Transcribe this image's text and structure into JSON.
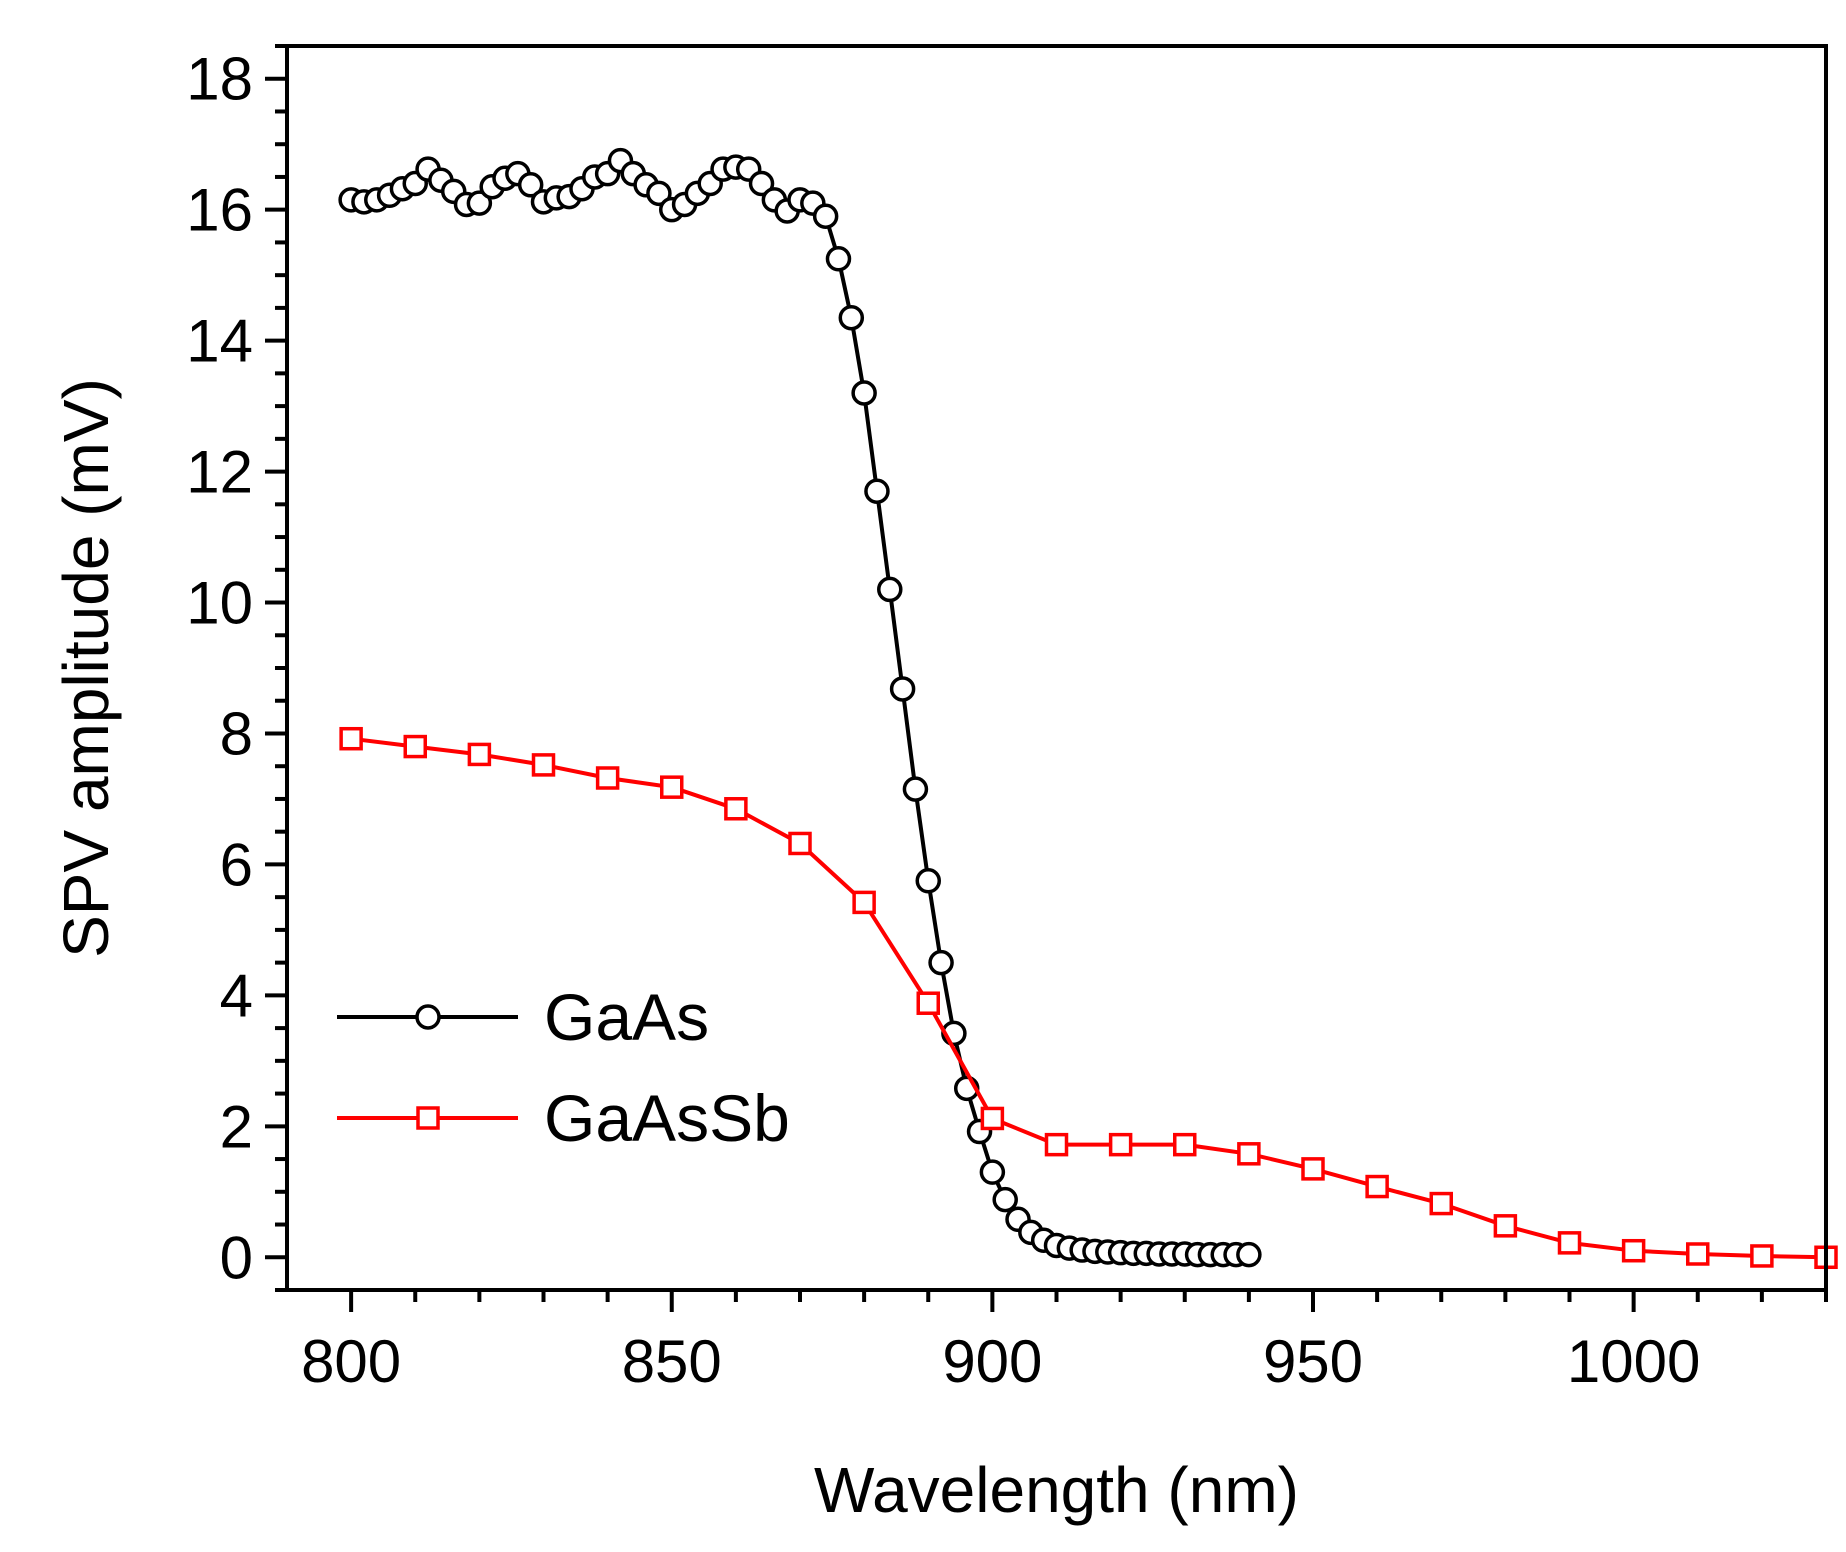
{
  "chart_data": {
    "type": "line",
    "title": "",
    "xlabel": "Wavelength (nm)",
    "ylabel": "SPV amplitude (mV)",
    "xlim": [
      790,
      1030
    ],
    "ylim": [
      -0.5,
      18.5
    ],
    "xticks": [
      800,
      850,
      900,
      950,
      1000
    ],
    "yticks": [
      0,
      2,
      4,
      6,
      8,
      10,
      12,
      14,
      16,
      18
    ],
    "x_tick_labels": [
      "800",
      "850",
      "900",
      "950",
      "1000"
    ],
    "y_tick_labels": [
      "0",
      "2",
      "4",
      "6",
      "8",
      "10",
      "12",
      "14",
      "16",
      "18"
    ],
    "grid": false,
    "legend_position": "lower-left",
    "series": [
      {
        "name": "GaAs",
        "color": "#000000",
        "marker": "circle",
        "x": [
          800,
          802,
          804,
          806,
          808,
          810,
          812,
          814,
          816,
          818,
          820,
          822,
          824,
          826,
          828,
          830,
          832,
          834,
          836,
          838,
          840,
          842,
          844,
          846,
          848,
          850,
          852,
          854,
          856,
          858,
          860,
          862,
          864,
          866,
          868,
          870,
          872,
          874,
          876,
          878,
          880,
          882,
          884,
          886,
          888,
          890,
          892,
          894,
          896,
          898,
          900,
          902,
          904,
          906,
          908,
          910,
          912,
          914,
          916,
          918,
          920,
          922,
          924,
          926,
          928,
          930,
          932,
          934,
          936,
          938,
          940
        ],
        "y": [
          16.15,
          16.12,
          16.15,
          16.22,
          16.32,
          16.4,
          16.62,
          16.45,
          16.28,
          16.08,
          16.1,
          16.35,
          16.48,
          16.55,
          16.38,
          16.12,
          16.18,
          16.2,
          16.32,
          16.5,
          16.55,
          16.75,
          16.55,
          16.38,
          16.25,
          16.0,
          16.08,
          16.25,
          16.4,
          16.62,
          16.65,
          16.62,
          16.4,
          16.15,
          15.98,
          16.15,
          16.1,
          15.9,
          15.25,
          14.35,
          13.2,
          11.7,
          10.2,
          8.68,
          7.15,
          5.75,
          4.5,
          3.42,
          2.58,
          1.92,
          1.3,
          0.88,
          0.58,
          0.38,
          0.26,
          0.18,
          0.14,
          0.11,
          0.09,
          0.08,
          0.07,
          0.06,
          0.06,
          0.05,
          0.05,
          0.05,
          0.04,
          0.04,
          0.04,
          0.04,
          0.04
        ]
      },
      {
        "name": "GaAsSb",
        "color": "#ff0000",
        "marker": "square",
        "x": [
          800,
          810,
          820,
          830,
          840,
          850,
          860,
          870,
          880,
          890,
          900,
          910,
          920,
          930,
          940,
          950,
          960,
          970,
          980,
          990,
          1000,
          1010,
          1020,
          1030
        ],
        "y": [
          7.92,
          7.8,
          7.68,
          7.52,
          7.32,
          7.18,
          6.85,
          6.32,
          5.42,
          3.88,
          2.12,
          1.72,
          1.72,
          1.72,
          1.58,
          1.35,
          1.08,
          0.82,
          0.48,
          0.22,
          0.1,
          0.05,
          0.02,
          0.0
        ]
      }
    ]
  }
}
